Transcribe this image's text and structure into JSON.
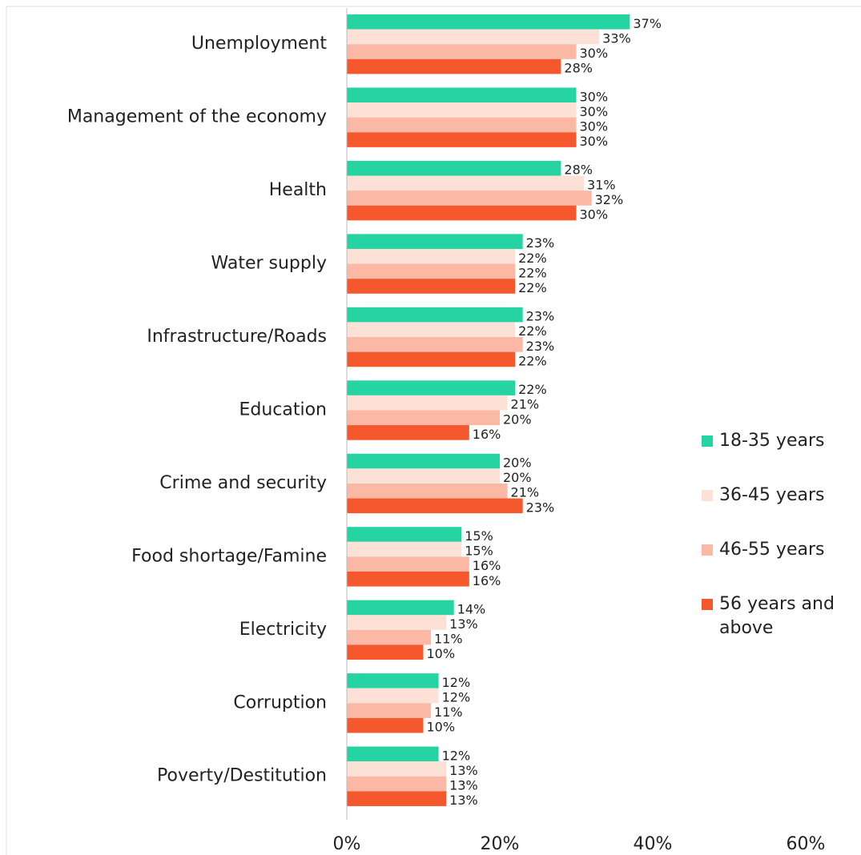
{
  "chart_data": {
    "type": "bar",
    "orientation": "horizontal",
    "categories": [
      "Unemployment",
      "Management of the economy",
      "Health",
      "Water supply",
      "Infrastructure/Roads",
      "Education",
      "Crime and security",
      "Food shortage/Famine",
      "Electricity",
      "Corruption",
      "Poverty/Destitution"
    ],
    "series": [
      {
        "name": "18-35 years",
        "color": "#26d3a2",
        "values": [
          37,
          30,
          28,
          23,
          23,
          22,
          20,
          15,
          14,
          12,
          12
        ],
        "value_labels": [
          "37%",
          "30%",
          "28%",
          "23%",
          "23%",
          "22%",
          "20%",
          "15%",
          "14%",
          "12%",
          "12%"
        ]
      },
      {
        "name": "36-45 years",
        "color": "#fde1d7",
        "values": [
          33,
          30,
          31,
          22,
          22,
          21,
          20,
          15,
          13,
          12,
          13
        ],
        "value_labels": [
          "33%",
          "30%",
          "31%",
          "22%",
          "22%",
          "21%",
          "20%",
          "15%",
          "13%",
          "12%",
          "13%"
        ]
      },
      {
        "name": "46-55 years",
        "color": "#fbb8a4",
        "values": [
          30,
          30,
          32,
          22,
          23,
          20,
          21,
          16,
          11,
          11,
          13
        ],
        "value_labels": [
          "30%",
          "30%",
          "32%",
          "22%",
          "23%",
          "20%",
          "21%",
          "16%",
          "11%",
          "11%",
          "13%"
        ]
      },
      {
        "name": "56 years and above",
        "color": "#f4582c",
        "values": [
          28,
          30,
          30,
          22,
          22,
          16,
          23,
          16,
          10,
          10,
          13
        ],
        "value_labels": [
          "28%",
          "30%",
          "30%",
          "22%",
          "22%",
          "16%",
          "23%",
          "16%",
          "10%",
          "10%",
          "13%"
        ]
      }
    ],
    "xlim": [
      0,
      60
    ],
    "xticks": [
      {
        "value": 0,
        "label": "0%"
      },
      {
        "value": 20,
        "label": "20%"
      },
      {
        "value": 40,
        "label": "40%"
      },
      {
        "value": 60,
        "label": "60%"
      }
    ],
    "grid": false,
    "legend": "right"
  }
}
